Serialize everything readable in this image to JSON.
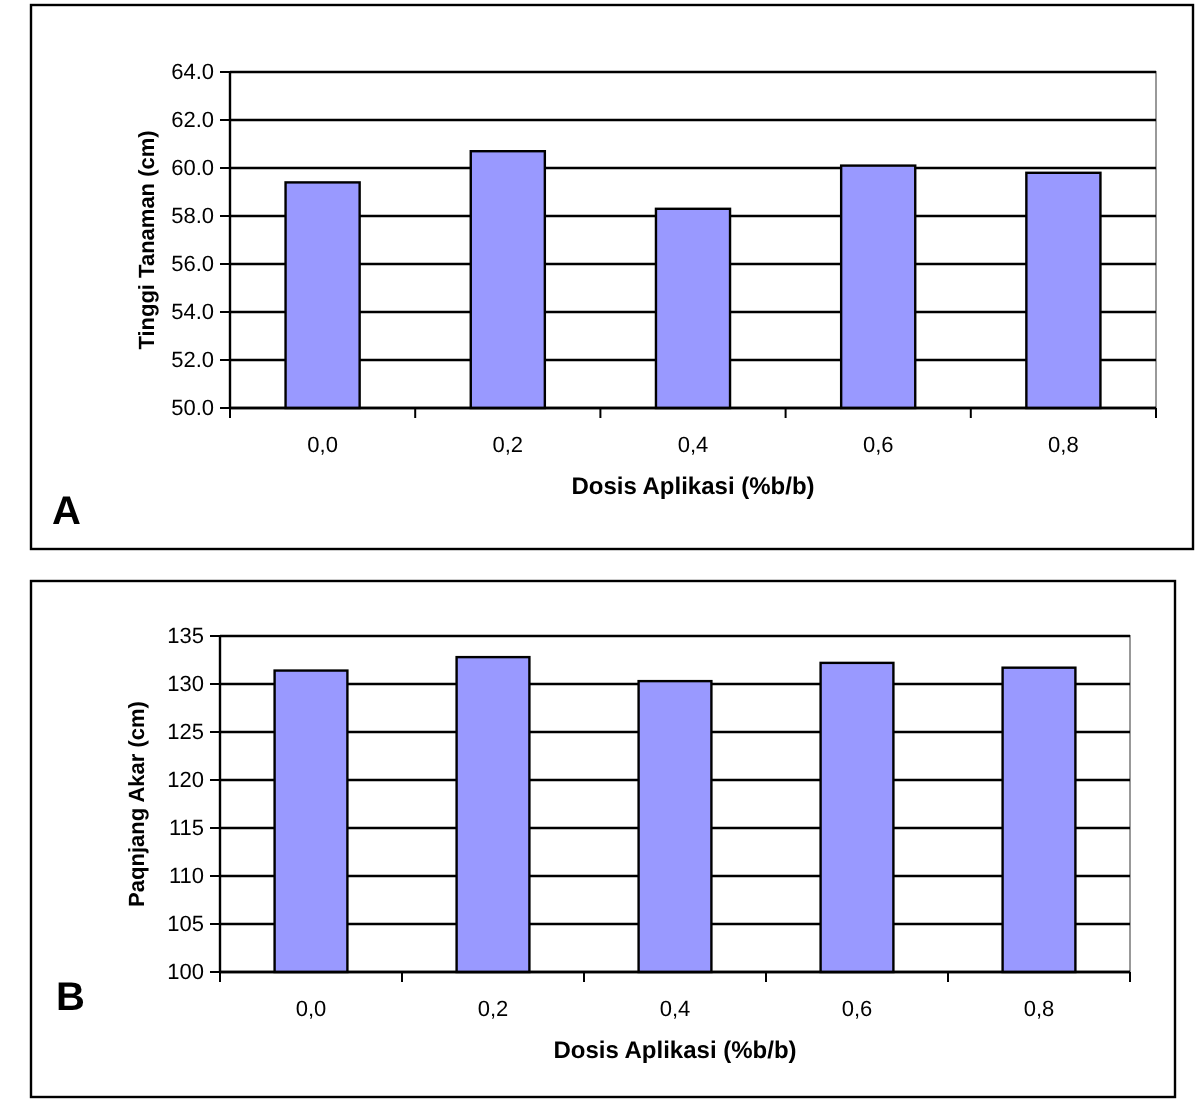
{
  "chart_data": [
    {
      "type": "bar",
      "categories": [
        "0,0",
        "0,2",
        "0,4",
        "0,6",
        "0,8"
      ],
      "values": [
        59.4,
        60.7,
        58.3,
        60.1,
        59.8
      ],
      "color": "#9999ff",
      "ylim": [
        50,
        64
      ],
      "yticks": [
        {
          "value": 50,
          "label": "50.0"
        },
        {
          "value": 52,
          "label": "52.0"
        },
        {
          "value": 54,
          "label": "54.0"
        },
        {
          "value": 56,
          "label": "56.0"
        },
        {
          "value": 58,
          "label": "58.0"
        },
        {
          "value": 60,
          "label": "60.0"
        },
        {
          "value": 62,
          "label": "62.0"
        },
        {
          "value": 64,
          "label": "64.0"
        }
      ],
      "grid": "y",
      "xlabel": "Dosis Aplikasi (%b/b)",
      "ylabel": "Tinggi Tanaman (cm)",
      "annotations": [
        "A"
      ]
    },
    {
      "type": "bar",
      "categories": [
        "0,0",
        "0,2",
        "0,4",
        "0,6",
        "0,8"
      ],
      "values": [
        131.4,
        132.8,
        130.3,
        132.2,
        131.7
      ],
      "color": "#9999ff",
      "ylim": [
        100,
        135
      ],
      "yticks": [
        100,
        105,
        110,
        115,
        120,
        125,
        130,
        135
      ],
      "grid": "y",
      "xlabel": "Dosis Aplikasi (%b/b)",
      "ylabel": "Paqnjang Akar (cm)",
      "annotations": [
        "B"
      ]
    }
  ]
}
